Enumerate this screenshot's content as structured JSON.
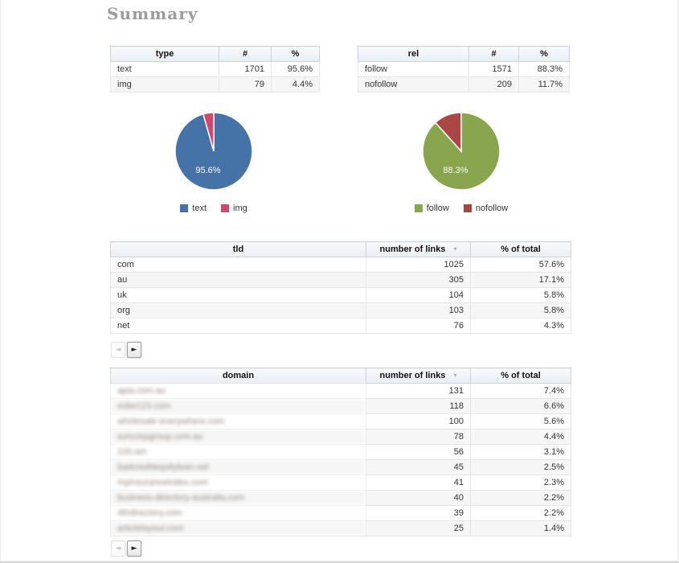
{
  "page": {
    "title": "Summary"
  },
  "icons": {
    "sort_desc": "▾",
    "prev_arrow": "◄",
    "next_arrow": "►"
  },
  "type_table": {
    "headers": [
      "type",
      "#",
      "%"
    ],
    "rows": [
      {
        "label": "text",
        "count": "1701",
        "pct": "95.6%"
      },
      {
        "label": "img",
        "count": "79",
        "pct": "4.4%"
      }
    ]
  },
  "rel_table": {
    "headers": [
      "rel",
      "#",
      "%"
    ],
    "rows": [
      {
        "label": "follow",
        "count": "1571",
        "pct": "88.3%"
      },
      {
        "label": "nofollow",
        "count": "209",
        "pct": "11.7%"
      }
    ]
  },
  "chart_data": [
    {
      "type": "pie",
      "series": [
        {
          "name": "text",
          "value": 95.6
        },
        {
          "name": "img",
          "value": 4.4
        }
      ],
      "colors": [
        "#4572a7",
        "#d4476d"
      ],
      "inner_label": "95.6%",
      "legend": [
        "text",
        "img"
      ],
      "legend_position": "bottom"
    },
    {
      "type": "pie",
      "series": [
        {
          "name": "follow",
          "value": 88.3
        },
        {
          "name": "nofollow",
          "value": 11.7
        }
      ],
      "colors": [
        "#89a54e",
        "#aa4643"
      ],
      "inner_label": "88.3%",
      "legend": [
        "follow",
        "nofollow"
      ],
      "legend_position": "bottom"
    }
  ],
  "tld_table": {
    "headers": [
      "tld",
      "number of links",
      "% of total"
    ],
    "rows": [
      {
        "tld": "com",
        "links": "1025",
        "pct": "57.6%"
      },
      {
        "tld": "au",
        "links": "305",
        "pct": "17.1%"
      },
      {
        "tld": "uk",
        "links": "104",
        "pct": "5.8%"
      },
      {
        "tld": "org",
        "links": "103",
        "pct": "5.8%"
      },
      {
        "tld": "net",
        "links": "76",
        "pct": "4.3%"
      }
    ]
  },
  "domain_table": {
    "headers": [
      "domain",
      "number of links",
      "% of total"
    ],
    "rows": [
      {
        "domain": "apia.com.au",
        "links": "131",
        "pct": "7.4%"
      },
      {
        "domain": "sube123.com",
        "links": "118",
        "pct": "6.6%"
      },
      {
        "domain": "wholesale-everywhere.com",
        "links": "100",
        "pct": "5.6%"
      },
      {
        "domain": "suncorpgroup.com.au",
        "links": "78",
        "pct": "4.4%"
      },
      {
        "domain": "100.am",
        "links": "56",
        "pct": "3.1%"
      },
      {
        "domain": "badcreditequityloan.net",
        "links": "45",
        "pct": "2.5%"
      },
      {
        "domain": "myinsuranceindex.com",
        "links": "41",
        "pct": "2.3%"
      },
      {
        "domain": "business-directory-australia.com",
        "links": "40",
        "pct": "2.2%"
      },
      {
        "domain": "4thdirectory.com",
        "links": "39",
        "pct": "2.2%"
      },
      {
        "domain": "articlelayout.com",
        "links": "25",
        "pct": "1.4%"
      }
    ]
  }
}
